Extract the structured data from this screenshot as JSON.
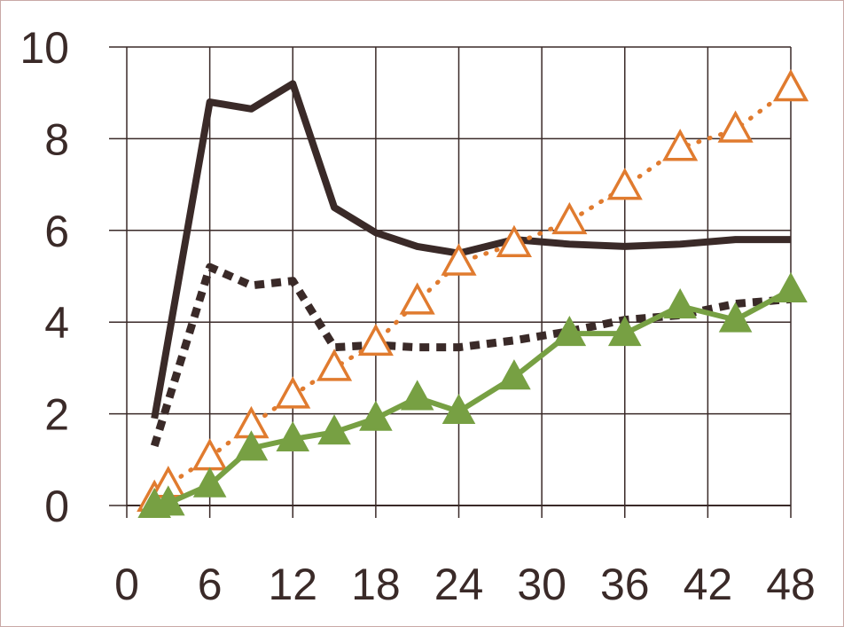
{
  "chart_data": {
    "type": "line",
    "title": "",
    "xlabel": "",
    "ylabel": "",
    "xlim": [
      0,
      48
    ],
    "ylim": [
      0,
      10
    ],
    "x_ticks": [
      0,
      6,
      12,
      18,
      24,
      30,
      36,
      42,
      48
    ],
    "y_ticks": [
      0,
      2,
      4,
      6,
      8,
      10
    ],
    "x_tick_labels": [
      "0",
      "6",
      "12",
      "18",
      "24",
      "30",
      "36",
      "42",
      "48"
    ],
    "y_tick_labels": [
      "0",
      "2",
      "4",
      "6",
      "8",
      "10"
    ],
    "grid": true,
    "legend": "none",
    "series": [
      {
        "style": "solid-line",
        "color": "#3a2a28",
        "marker": "none",
        "x": [
          2,
          6,
          9,
          12,
          15,
          18,
          21,
          24,
          28,
          32,
          36,
          40,
          44,
          48
        ],
        "values": [
          1.9,
          8.8,
          8.65,
          9.2,
          6.5,
          5.95,
          5.65,
          5.5,
          5.8,
          5.7,
          5.65,
          5.7,
          5.8,
          5.8
        ]
      },
      {
        "style": "dotted-line",
        "color": "#3a2a28",
        "marker": "none",
        "x": [
          2,
          6,
          9,
          12,
          15,
          18,
          21,
          24,
          28,
          32,
          36,
          40,
          44,
          48
        ],
        "values": [
          1.3,
          5.2,
          4.8,
          4.9,
          3.45,
          3.5,
          3.45,
          3.45,
          3.6,
          3.8,
          4.05,
          4.15,
          4.4,
          4.5
        ]
      },
      {
        "style": "dotted-line",
        "color": "#e07b2f",
        "marker": "triangle-open",
        "x": [
          2,
          3,
          6,
          9,
          12,
          15,
          18,
          21,
          24,
          28,
          32,
          36,
          40,
          44,
          48
        ],
        "values": [
          0.15,
          0.45,
          1.05,
          1.75,
          2.4,
          3.0,
          3.55,
          4.45,
          5.3,
          5.7,
          6.2,
          6.95,
          7.8,
          8.2,
          9.1
        ]
      },
      {
        "style": "solid-line",
        "color": "#77a043",
        "marker": "triangle-filled",
        "x": [
          2,
          3,
          6,
          9,
          12,
          15,
          18,
          21,
          24,
          28,
          32,
          36,
          40,
          44,
          48
        ],
        "values": [
          0.0,
          0.05,
          0.45,
          1.25,
          1.45,
          1.6,
          1.9,
          2.35,
          2.05,
          2.8,
          3.75,
          3.75,
          4.35,
          4.05,
          4.7
        ]
      }
    ]
  }
}
